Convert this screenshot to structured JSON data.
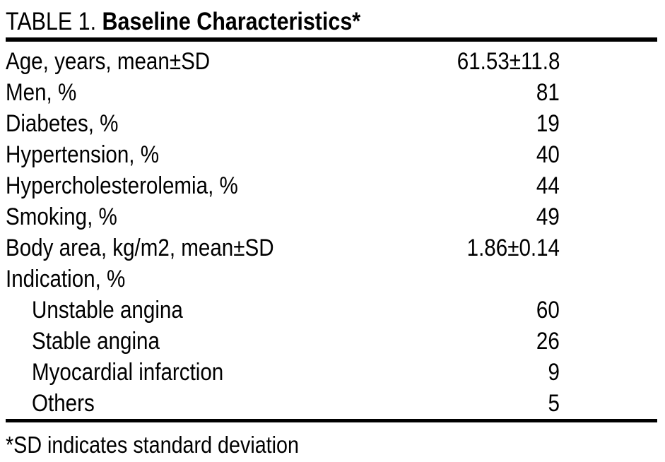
{
  "title": {
    "prefix": "TABLE 1. ",
    "main": "Baseline Characteristics*"
  },
  "rows": [
    {
      "label": "Age, years, mean±SD",
      "value": "61.53±11.8",
      "indent": false
    },
    {
      "label": "Men, %",
      "value": "81",
      "indent": false
    },
    {
      "label": "Diabetes, %",
      "value": "19",
      "indent": false
    },
    {
      "label": "Hypertension, %",
      "value": "40",
      "indent": false
    },
    {
      "label": "Hypercholesterolemia, %",
      "value": "44",
      "indent": false
    },
    {
      "label": "Smoking, %",
      "value": "49",
      "indent": false
    },
    {
      "label": "Body area, kg/m2, mean±SD",
      "value": "1.86±0.14",
      "indent": false
    },
    {
      "label": "Indication, %",
      "value": "",
      "indent": false
    },
    {
      "label": "Unstable angina",
      "value": "60",
      "indent": true
    },
    {
      "label": "Stable angina",
      "value": "26",
      "indent": true
    },
    {
      "label": "Myocardial infarction",
      "value": "9",
      "indent": true
    },
    {
      "label": "Others",
      "value": "5",
      "indent": true
    }
  ],
  "footnote": "*SD indicates standard deviation",
  "colors": {
    "text": "#000000",
    "background": "#ffffff",
    "rule": "#000000"
  }
}
